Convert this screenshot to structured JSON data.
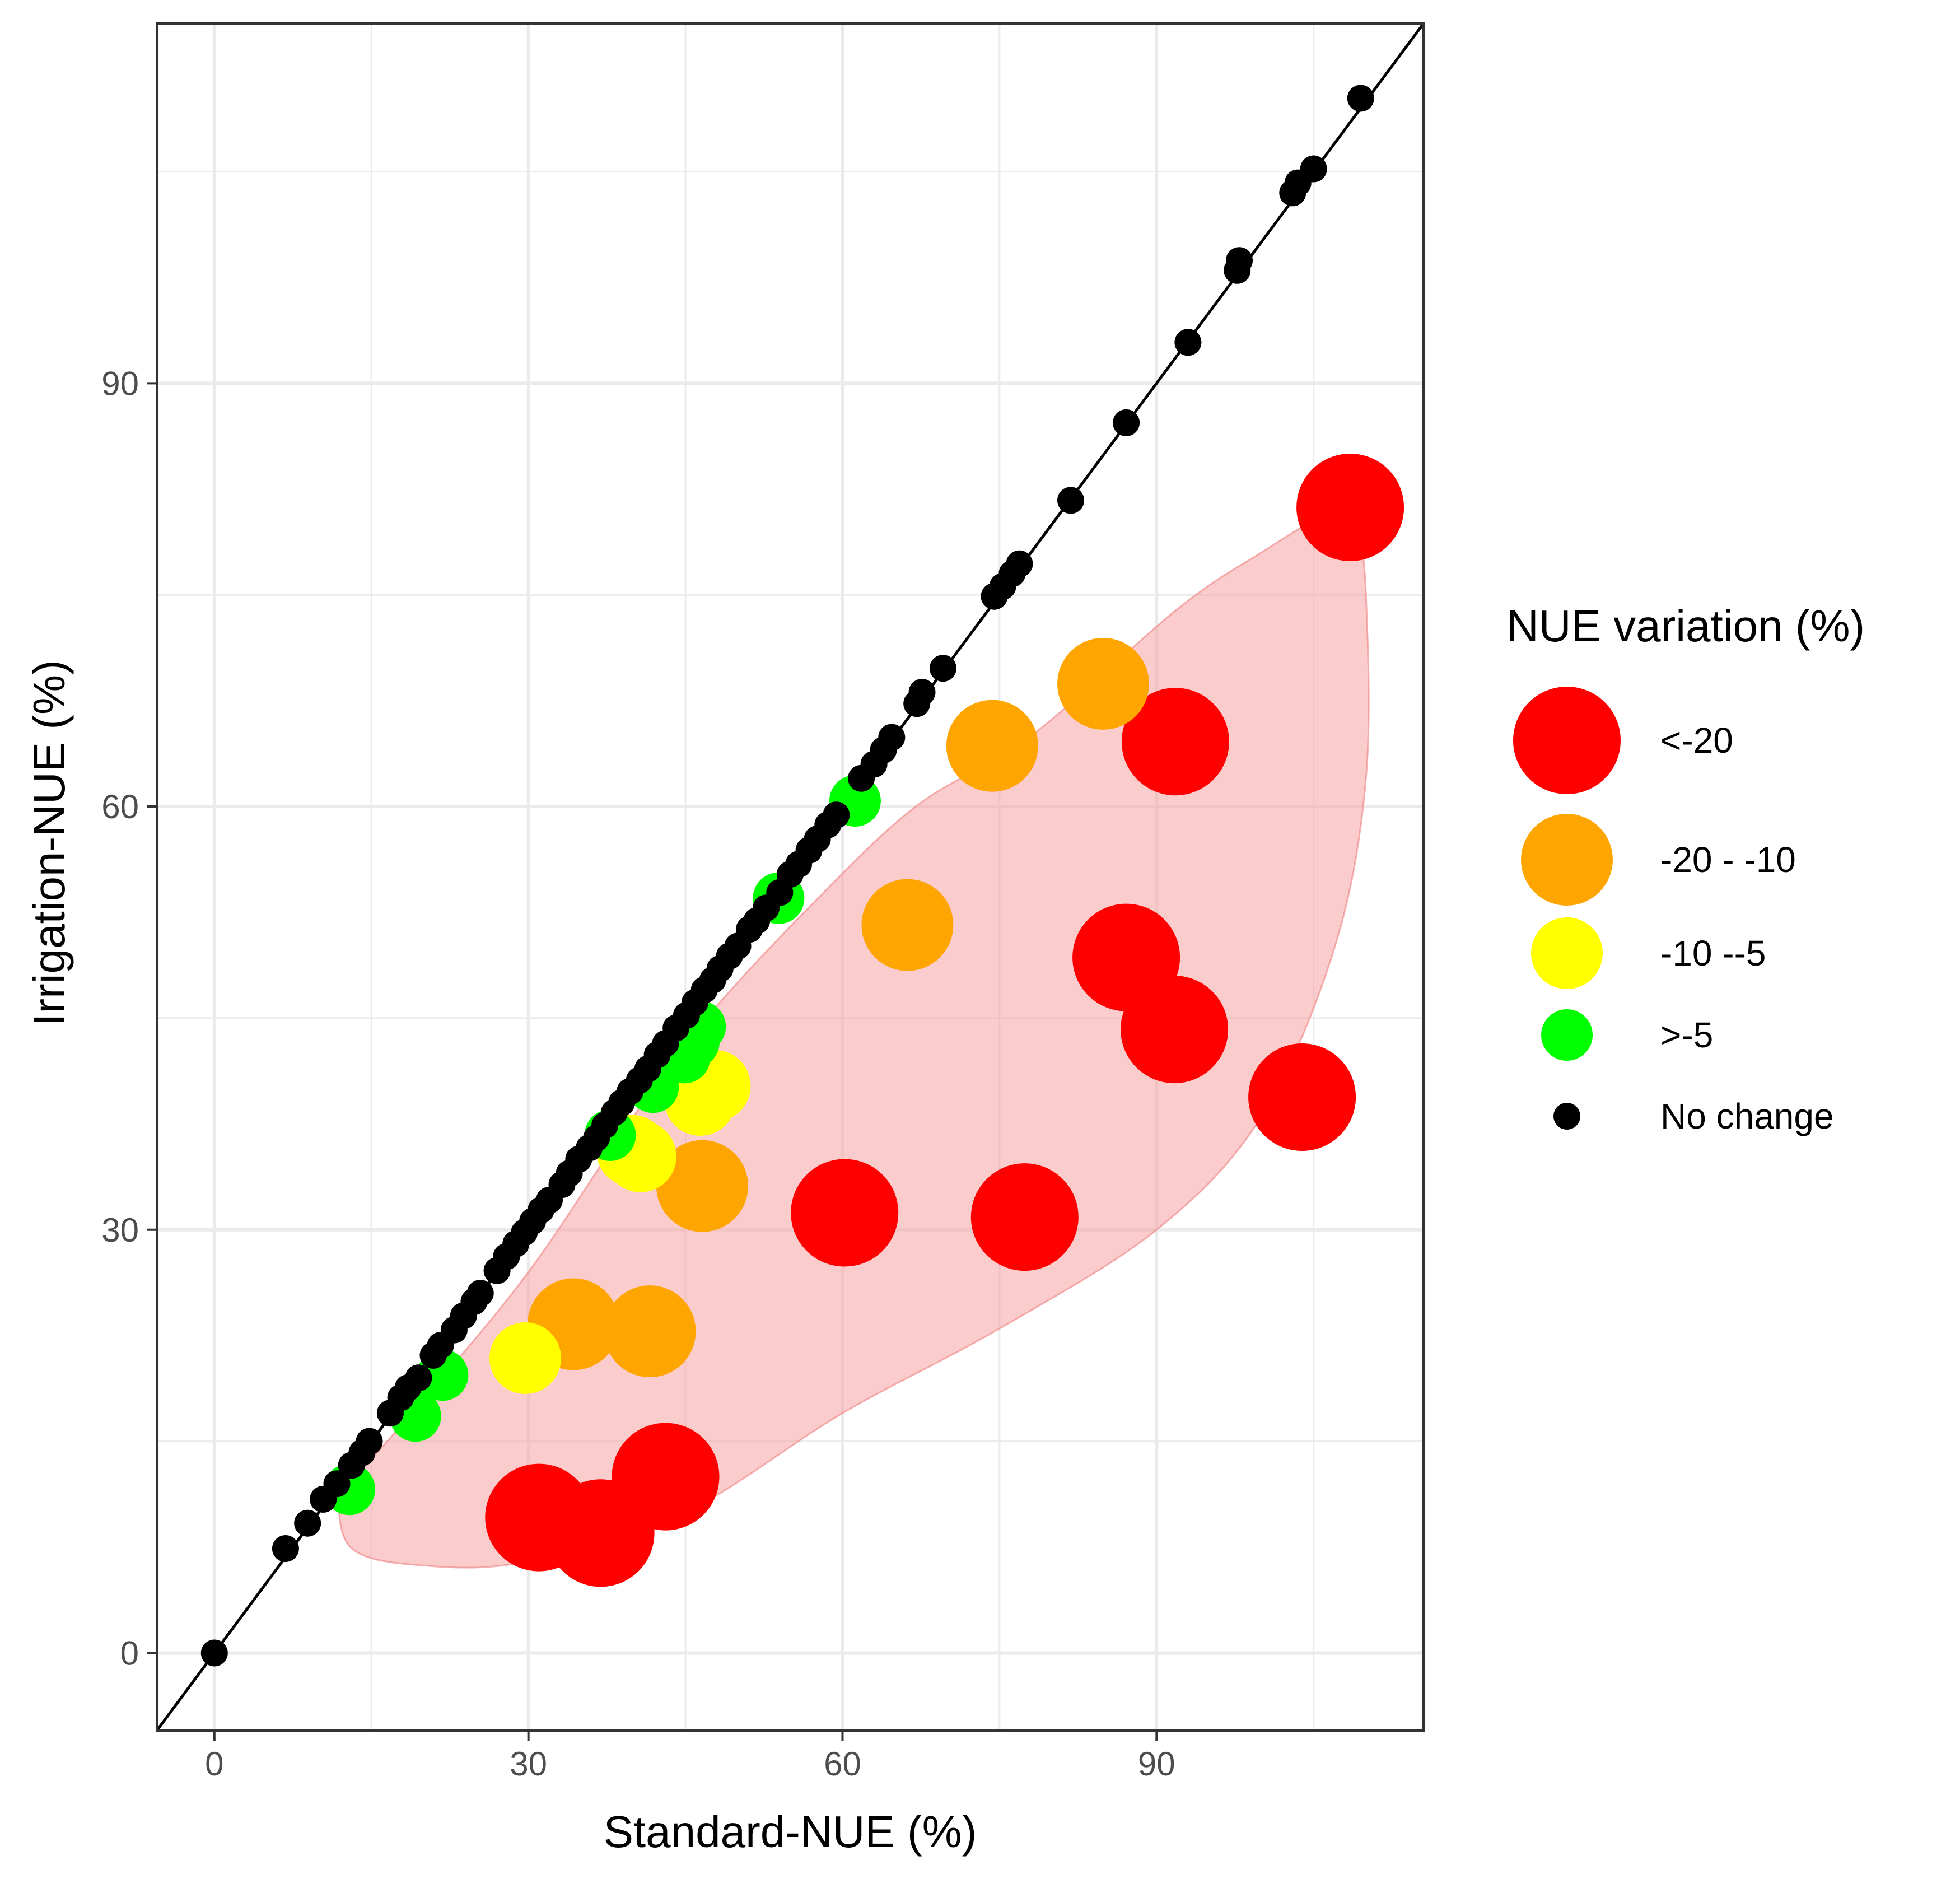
{
  "chart_data": {
    "type": "scatter",
    "title": "",
    "xlabel": "Standard-NUE (%)",
    "ylabel": "Irrigation-NUE (%)",
    "xlim": [
      -5.5,
      115.5
    ],
    "ylim": [
      -5.5,
      115.5
    ],
    "x_ticks": [
      0,
      30,
      60,
      90
    ],
    "y_ticks": [
      0,
      30,
      60,
      90
    ],
    "x_minor": [
      15,
      45,
      75,
      105
    ],
    "y_minor": [
      15,
      45,
      75,
      105
    ],
    "grid": true,
    "identity_line": true,
    "legend_position": "right",
    "legend_title": "NUE variation (%)",
    "colors": {
      "lt_minus20": "#ff0000",
      "minus20_minus10": "#ffa500",
      "minus10_minus5": "#ffff00",
      "gt_minus5": "#00ff00",
      "no_change": "#000000",
      "hull_fill": "#f8a3a3",
      "hull_stroke": "#f08080"
    },
    "categories": [
      {
        "key": "lt_minus20",
        "label": "<-20"
      },
      {
        "key": "minus20_minus10",
        "label": "-20 - -10"
      },
      {
        "key": "minus10_minus5",
        "label": "-10 --5"
      },
      {
        "key": "gt_minus5",
        "label": ">-5"
      },
      {
        "key": "no_change",
        "label": "No change"
      }
    ],
    "hull": [
      [
        12,
        12
      ],
      [
        13,
        7.5
      ],
      [
        20,
        6.2
      ],
      [
        30,
        6.5
      ],
      [
        45,
        10
      ],
      [
        60,
        17
      ],
      [
        75,
        23
      ],
      [
        90,
        30
      ],
      [
        100,
        38
      ],
      [
        107,
        50
      ],
      [
        110,
        62
      ],
      [
        110,
        75
      ],
      [
        109,
        80
      ],
      [
        107,
        81
      ],
      [
        100,
        78
      ],
      [
        92,
        74
      ],
      [
        78,
        65
      ],
      [
        67,
        60
      ],
      [
        57,
        53
      ],
      [
        47,
        45
      ],
      [
        40,
        38
      ],
      [
        30,
        27
      ],
      [
        20,
        18
      ],
      [
        14,
        13
      ]
    ],
    "series": [
      {
        "name": "<-20",
        "key": "lt_minus20",
        "points": [
          [
            108.5,
            81.2
          ],
          [
            91.8,
            64.6
          ],
          [
            87.1,
            49.3
          ],
          [
            91.7,
            44.2
          ],
          [
            103.9,
            39.4
          ],
          [
            60.2,
            31.2
          ],
          [
            77.4,
            30.9
          ],
          [
            43.1,
            12.5
          ],
          [
            36.9,
            8.5
          ],
          [
            31,
            9.6
          ]
        ]
      },
      {
        "name": "-20 - -10",
        "key": "minus20_minus10",
        "points": [
          [
            84.9,
            68.7
          ],
          [
            74.3,
            64.3
          ],
          [
            66.2,
            51.6
          ],
          [
            46.6,
            33.1
          ],
          [
            34.3,
            23.3
          ],
          [
            41.6,
            22.8
          ]
        ]
      },
      {
        "name": "-10 --5",
        "key": "minus10_minus5",
        "points": [
          [
            47.8,
            40.2
          ],
          [
            46.4,
            39.2
          ],
          [
            39.9,
            35.6
          ],
          [
            40.7,
            35.2
          ],
          [
            29.7,
            20.9
          ]
        ]
      },
      {
        "name": ">-5",
        "key": "gt_minus5",
        "points": [
          [
            61.2,
            60.4
          ],
          [
            53.9,
            53.5
          ],
          [
            46.4,
            44.4
          ],
          [
            45.8,
            43.3
          ],
          [
            44.9,
            42.2
          ],
          [
            41.9,
            40.1
          ],
          [
            37.8,
            36.7
          ],
          [
            21.8,
            19.7
          ],
          [
            19.2,
            16.8
          ],
          [
            12.9,
            11.6
          ]
        ]
      },
      {
        "name": "No change",
        "key": "no_change",
        "points": [
          [
            0,
            0
          ],
          [
            6.8,
            7.4
          ],
          [
            8.9,
            9.2
          ],
          [
            10.4,
            10.9
          ],
          [
            11.7,
            12
          ],
          [
            13.1,
            13.3
          ],
          [
            14.1,
            14.2
          ],
          [
            14.8,
            15
          ],
          [
            16.8,
            17
          ],
          [
            17.8,
            18.1
          ],
          [
            18.5,
            18.8
          ],
          [
            19.5,
            19.5
          ],
          [
            20.9,
            21.1
          ],
          [
            21.6,
            21.8
          ],
          [
            22.9,
            22.9
          ],
          [
            23.8,
            23.9
          ],
          [
            24.8,
            24.9
          ],
          [
            25.4,
            25.5
          ],
          [
            27,
            27.1
          ],
          [
            27.9,
            28.1
          ],
          [
            28.8,
            29
          ],
          [
            29.6,
            29.8
          ],
          [
            30.4,
            30.6
          ],
          [
            31.2,
            31.4
          ],
          [
            32,
            32.1
          ],
          [
            33.2,
            33.2
          ],
          [
            33.9,
            34
          ],
          [
            34.8,
            35
          ],
          [
            35.8,
            35.8
          ],
          [
            36.5,
            36.5
          ],
          [
            37.3,
            37.4
          ],
          [
            38.2,
            38.3
          ],
          [
            38.9,
            39
          ],
          [
            39.7,
            39.8
          ],
          [
            40.6,
            40.6
          ],
          [
            41.4,
            41.4
          ],
          [
            42.3,
            42.4
          ],
          [
            43.1,
            43.2
          ],
          [
            44.1,
            44.3
          ],
          [
            45.1,
            45.2
          ],
          [
            45.9,
            46.1
          ],
          [
            46.8,
            47
          ],
          [
            47.6,
            47.7
          ],
          [
            48.3,
            48.5
          ],
          [
            49.2,
            49.4
          ],
          [
            50,
            50.1
          ],
          [
            51.1,
            51.3
          ],
          [
            51.8,
            51.9
          ],
          [
            52.7,
            52.8
          ],
          [
            54,
            53.9
          ],
          [
            55,
            55.2
          ],
          [
            55.8,
            55.9
          ],
          [
            56.8,
            56.9
          ],
          [
            57.6,
            57.7
          ],
          [
            58.6,
            58.7
          ],
          [
            59.4,
            59.4
          ],
          [
            61.8,
            62
          ],
          [
            63,
            63
          ],
          [
            63.9,
            64
          ],
          [
            64.7,
            64.9
          ],
          [
            67.1,
            67.3
          ],
          [
            67.6,
            68.1
          ],
          [
            69.6,
            69.8
          ],
          [
            74.5,
            74.9
          ],
          [
            75.3,
            75.6
          ],
          [
            76.2,
            76.5
          ],
          [
            76.9,
            77.2
          ],
          [
            81.8,
            81.7
          ],
          [
            87.1,
            87.2
          ],
          [
            93,
            92.9
          ],
          [
            97.7,
            98
          ],
          [
            97.9,
            98.7
          ],
          [
            103,
            103.5
          ],
          [
            103.5,
            104.2
          ],
          [
            105,
            105.2
          ],
          [
            109.5,
            110.2
          ]
        ]
      }
    ],
    "bubble_radius": {
      "lt_minus20": 96,
      "minus20_minus10": 82,
      "minus10_minus5": 64,
      "gt_minus5": 46,
      "no_change": 24
    }
  }
}
